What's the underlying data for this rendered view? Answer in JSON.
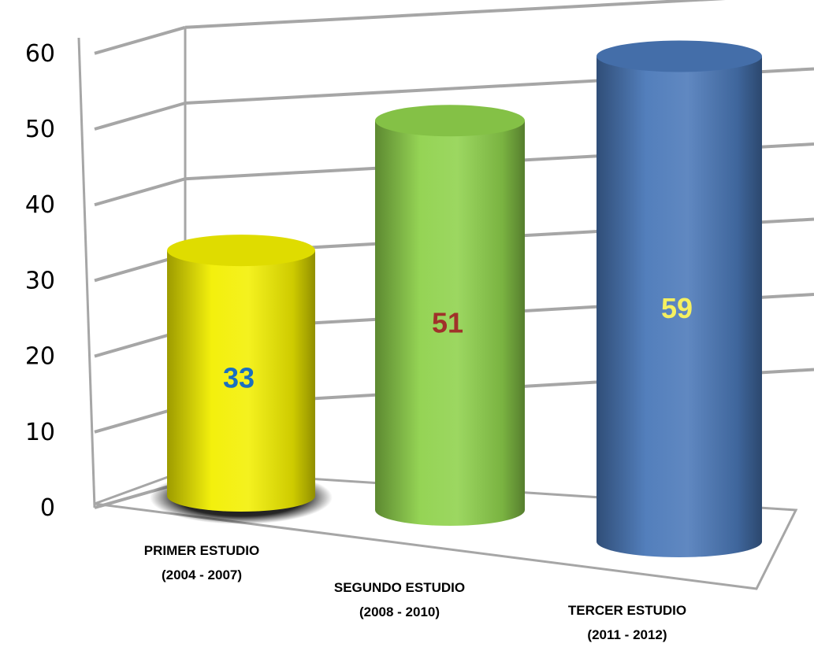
{
  "chart_data": {
    "type": "bar",
    "style": "3d-cylinder",
    "categories": [
      [
        "PRIMER ESTUDIO",
        "(2004 - 2007)"
      ],
      [
        "SEGUNDO ESTUDIO",
        "(2008 - 2010)"
      ],
      [
        "TERCER ESTUDIO",
        "(2011 - 2012)"
      ]
    ],
    "values": [
      33,
      51,
      59
    ],
    "data_labels": [
      "33",
      "51",
      "59"
    ],
    "bar_colors": [
      "#f2ef00",
      "#8fd24c",
      "#4a78b8"
    ],
    "label_colors": [
      "#1a6fc0",
      "#a0322a",
      "#f5f060"
    ],
    "ylim": [
      0,
      60
    ],
    "yticks": [
      "0",
      "10",
      "20",
      "30",
      "40",
      "50",
      "60"
    ],
    "grid": true,
    "legend": "none",
    "title": "",
    "xlabel": "",
    "ylabel": ""
  }
}
